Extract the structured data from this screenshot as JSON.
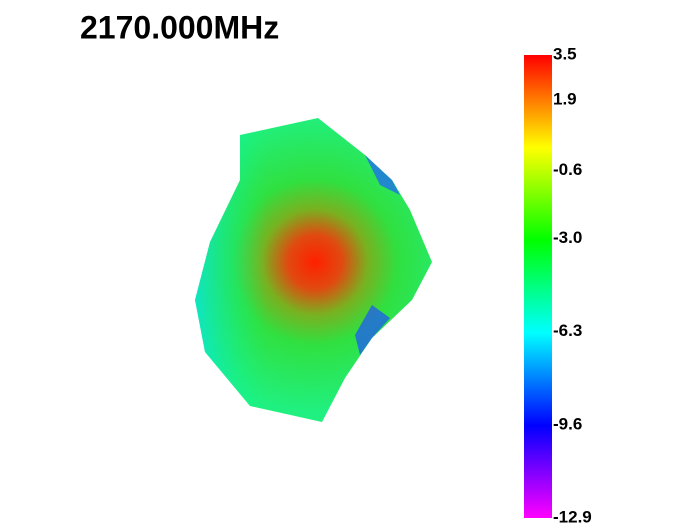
{
  "chart_data": {
    "type": "pattern3d",
    "title": "2170.000MHz",
    "clim": [
      -12.9,
      3.5
    ],
    "cticks": [
      3.5,
      1.9,
      -0.6,
      {
        "value": -3,
        "label": "-3.0"
      },
      -6.3,
      -9.6,
      -12.9
    ],
    "colormap": [
      "#ff00ff",
      "#0000ff",
      "#00ffff",
      "#00ff00",
      "#ffff00",
      "#ff0000"
    ]
  }
}
